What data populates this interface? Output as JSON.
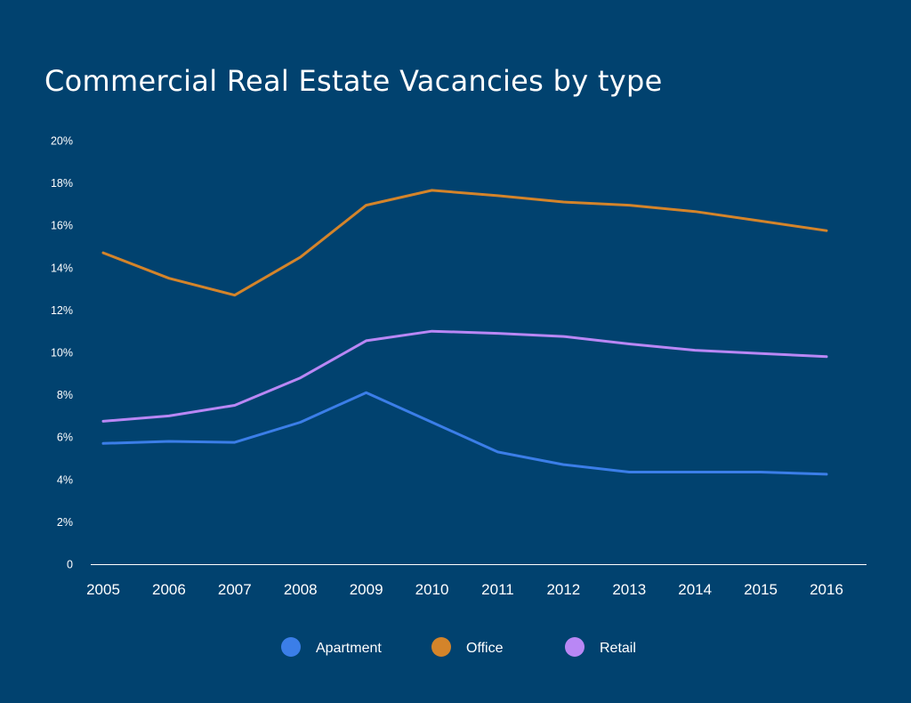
{
  "chart_data": {
    "type": "line",
    "title": "Commercial Real Estate Vacancies by type",
    "xlabel": "",
    "ylabel": "",
    "x": [
      "2005",
      "2006",
      "2007",
      "2008",
      "2009",
      "2010",
      "2011",
      "2012",
      "2013",
      "2014",
      "2015",
      "2016"
    ],
    "ylim": [
      0,
      20
    ],
    "yticks": [
      0,
      2,
      4,
      6,
      8,
      10,
      12,
      14,
      16,
      18,
      20
    ],
    "ytick_labels": [
      "0",
      "2%",
      "4%",
      "6%",
      "8%",
      "10%",
      "12%",
      "14%",
      "16%",
      "18%",
      "20%"
    ],
    "grid": false,
    "legend_position": "bottom",
    "series": [
      {
        "name": "Apartment",
        "color": "#3b7ee8",
        "values": [
          5.7,
          5.8,
          5.75,
          6.7,
          8.1,
          6.7,
          5.3,
          4.7,
          4.35,
          4.35,
          4.35,
          4.25
        ]
      },
      {
        "name": "Office",
        "color": "#d4842a",
        "values": [
          14.7,
          13.5,
          12.7,
          14.5,
          16.95,
          17.65,
          17.4,
          17.1,
          16.95,
          16.65,
          16.2,
          15.75
        ]
      },
      {
        "name": "Retail",
        "color": "#b987f5",
        "values": [
          6.75,
          7.0,
          7.5,
          8.8,
          10.55,
          11.0,
          10.9,
          10.75,
          10.4,
          10.1,
          9.95,
          9.8
        ]
      }
    ]
  }
}
